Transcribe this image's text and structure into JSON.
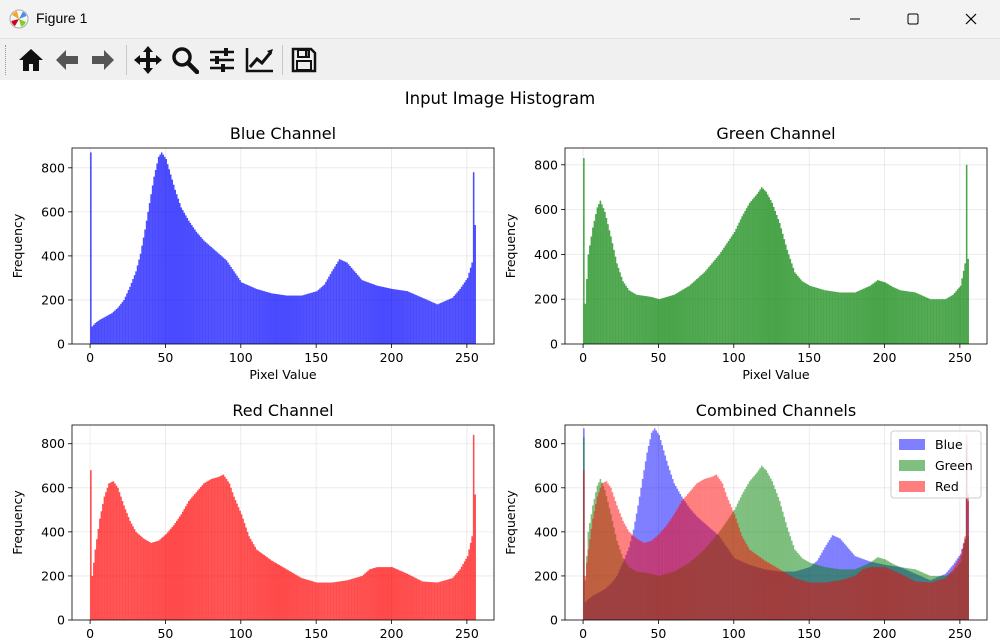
{
  "window": {
    "title": "Figure 1"
  },
  "toolbar": {
    "buttons": [
      {
        "name": "home-icon"
      },
      {
        "name": "back-icon"
      },
      {
        "name": "forward-icon"
      },
      {
        "name": "pan-icon"
      },
      {
        "name": "zoom-icon"
      },
      {
        "name": "configure-subplots-icon"
      },
      {
        "name": "edit-axis-icon"
      },
      {
        "name": "save-icon"
      }
    ]
  },
  "figure": {
    "suptitle": "Input Image Histogram"
  },
  "colors": {
    "blue": "#0000ff",
    "green": "#008000",
    "red": "#ff0000"
  },
  "chart_data": [
    {
      "type": "bar",
      "title": "Blue Channel",
      "xlabel": "Pixel Value",
      "ylabel": "Frequency",
      "xlim": [
        -12,
        268
      ],
      "ylim": [
        0,
        890
      ],
      "xticks": [
        0,
        50,
        100,
        150,
        200,
        250
      ],
      "yticks": [
        0,
        200,
        400,
        600,
        800
      ],
      "grid": true,
      "series": [
        {
          "color": "#0000ff",
          "points": [
            [
              0,
              870
            ],
            [
              1,
              80
            ],
            [
              3,
              95
            ],
            [
              6,
              110
            ],
            [
              10,
              125
            ],
            [
              14,
              140
            ],
            [
              18,
              165
            ],
            [
              22,
              200
            ],
            [
              26,
              260
            ],
            [
              30,
              330
            ],
            [
              33,
              410
            ],
            [
              36,
              520
            ],
            [
              39,
              640
            ],
            [
              42,
              760
            ],
            [
              45,
              850
            ],
            [
              47,
              870
            ],
            [
              50,
              840
            ],
            [
              53,
              770
            ],
            [
              56,
              700
            ],
            [
              60,
              620
            ],
            [
              65,
              560
            ],
            [
              70,
              510
            ],
            [
              75,
              470
            ],
            [
              80,
              440
            ],
            [
              85,
              410
            ],
            [
              90,
              380
            ],
            [
              95,
              330
            ],
            [
              100,
              280
            ],
            [
              110,
              250
            ],
            [
              120,
              230
            ],
            [
              130,
              220
            ],
            [
              140,
              220
            ],
            [
              150,
              240
            ],
            [
              155,
              270
            ],
            [
              160,
              330
            ],
            [
              165,
              385
            ],
            [
              170,
              370
            ],
            [
              175,
              330
            ],
            [
              180,
              290
            ],
            [
              190,
              265
            ],
            [
              200,
              250
            ],
            [
              210,
              240
            ],
            [
              220,
              210
            ],
            [
              230,
              180
            ],
            [
              240,
              210
            ],
            [
              245,
              250
            ],
            [
              250,
              300
            ],
            [
              253,
              370
            ],
            [
              254,
              780
            ],
            [
              255,
              540
            ],
            [
              256,
              450
            ]
          ]
        }
      ]
    },
    {
      "type": "bar",
      "title": "Green Channel",
      "xlabel": "Pixel Value",
      "ylabel": "Frequency",
      "xlim": [
        -12,
        268
      ],
      "ylim": [
        0,
        875
      ],
      "xticks": [
        0,
        50,
        100,
        150,
        200,
        250
      ],
      "yticks": [
        0,
        200,
        400,
        600,
        800
      ],
      "grid": true,
      "series": [
        {
          "color": "#008000",
          "points": [
            [
              0,
              830
            ],
            [
              1,
              180
            ],
            [
              3,
              400
            ],
            [
              6,
              520
            ],
            [
              9,
              610
            ],
            [
              11,
              640
            ],
            [
              14,
              590
            ],
            [
              18,
              480
            ],
            [
              22,
              360
            ],
            [
              26,
              280
            ],
            [
              30,
              240
            ],
            [
              35,
              220
            ],
            [
              40,
              215
            ],
            [
              45,
              210
            ],
            [
              50,
              200
            ],
            [
              55,
              210
            ],
            [
              60,
              220
            ],
            [
              65,
              240
            ],
            [
              70,
              260
            ],
            [
              75,
              290
            ],
            [
              80,
              320
            ],
            [
              85,
              360
            ],
            [
              90,
              400
            ],
            [
              95,
              450
            ],
            [
              100,
              500
            ],
            [
              105,
              570
            ],
            [
              110,
              630
            ],
            [
              115,
              670
            ],
            [
              118,
              700
            ],
            [
              121,
              680
            ],
            [
              125,
              630
            ],
            [
              130,
              540
            ],
            [
              135,
              420
            ],
            [
              140,
              320
            ],
            [
              145,
              280
            ],
            [
              150,
              260
            ],
            [
              160,
              240
            ],
            [
              170,
              230
            ],
            [
              180,
              230
            ],
            [
              190,
              260
            ],
            [
              195,
              285
            ],
            [
              200,
              275
            ],
            [
              205,
              255
            ],
            [
              210,
              240
            ],
            [
              220,
              230
            ],
            [
              230,
              200
            ],
            [
              240,
              200
            ],
            [
              245,
              220
            ],
            [
              250,
              260
            ],
            [
              253,
              360
            ],
            [
              254,
              800
            ],
            [
              255,
              380
            ],
            [
              256,
              320
            ]
          ]
        }
      ]
    },
    {
      "type": "bar",
      "title": "Red Channel",
      "ylabel": "Frequency",
      "xlim": [
        -12,
        268
      ],
      "ylim": [
        0,
        885
      ],
      "xticks": [
        0,
        50,
        100,
        150,
        200,
        250
      ],
      "yticks": [
        0,
        200,
        400,
        600,
        800
      ],
      "grid": true,
      "series": [
        {
          "color": "#ff0000",
          "points": [
            [
              0,
              680
            ],
            [
              1,
              200
            ],
            [
              3,
              320
            ],
            [
              6,
              460
            ],
            [
              9,
              560
            ],
            [
              12,
              620
            ],
            [
              15,
              630
            ],
            [
              18,
              600
            ],
            [
              22,
              520
            ],
            [
              26,
              450
            ],
            [
              30,
              400
            ],
            [
              35,
              370
            ],
            [
              40,
              350
            ],
            [
              45,
              360
            ],
            [
              50,
              390
            ],
            [
              55,
              430
            ],
            [
              60,
              480
            ],
            [
              65,
              540
            ],
            [
              70,
              580
            ],
            [
              75,
              620
            ],
            [
              80,
              640
            ],
            [
              85,
              650
            ],
            [
              88,
              660
            ],
            [
              92,
              620
            ],
            [
              95,
              560
            ],
            [
              100,
              480
            ],
            [
              105,
              380
            ],
            [
              110,
              320
            ],
            [
              120,
              270
            ],
            [
              130,
              230
            ],
            [
              140,
              190
            ],
            [
              150,
              170
            ],
            [
              160,
              170
            ],
            [
              170,
              180
            ],
            [
              180,
              200
            ],
            [
              185,
              230
            ],
            [
              190,
              240
            ],
            [
              200,
              240
            ],
            [
              210,
              210
            ],
            [
              220,
              175
            ],
            [
              230,
              170
            ],
            [
              240,
              190
            ],
            [
              245,
              230
            ],
            [
              250,
              290
            ],
            [
              253,
              380
            ],
            [
              254,
              840
            ],
            [
              255,
              570
            ],
            [
              256,
              450
            ]
          ]
        }
      ]
    },
    {
      "type": "bar",
      "title": "Combined Channels",
      "ylabel": "Frequency",
      "xlim": [
        -12,
        268
      ],
      "ylim": [
        0,
        885
      ],
      "xticks": [
        0,
        50,
        100,
        150,
        200,
        250
      ],
      "yticks": [
        0,
        200,
        400,
        600,
        800
      ],
      "grid": true,
      "legend": "top-right",
      "alpha": 0.5,
      "series": [
        {
          "name": "Blue",
          "color": "#0000ff",
          "ref": 0
        },
        {
          "name": "Green",
          "color": "#008000",
          "ref": 1
        },
        {
          "name": "Red",
          "color": "#ff0000",
          "ref": 2
        }
      ]
    }
  ]
}
